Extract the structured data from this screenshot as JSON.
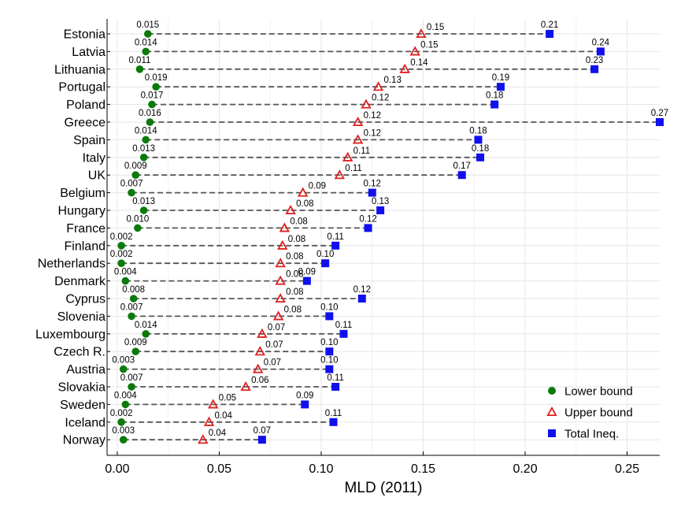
{
  "chart_data": {
    "type": "scatter",
    "xlabel": "MLD (2011)",
    "xlim": [
      -0.005,
      0.266
    ],
    "xticks": [
      0.0,
      0.05,
      0.1,
      0.15,
      0.2,
      0.25
    ],
    "xtick_labels": [
      "0.00",
      "0.05",
      "0.10",
      "0.15",
      "0.20",
      "0.25"
    ],
    "grid": true,
    "legend_position": "bottom-right",
    "categories": [
      "Estonia",
      "Latvia",
      "Lithuania",
      "Portugal",
      "Poland",
      "Greece",
      "Spain",
      "Italy",
      "UK",
      "Belgium",
      "Hungary",
      "France",
      "Finland",
      "Netherlands",
      "Denmark",
      "Cyprus",
      "Slovenia",
      "Luxembourg",
      "Czech R.",
      "Austria",
      "Slovakia",
      "Sweden",
      "Iceland",
      "Norway"
    ],
    "series": [
      {
        "name": "Lower bound",
        "marker": "circle",
        "color": "#0b7a0b",
        "values": [
          0.015,
          0.014,
          0.011,
          0.019,
          0.017,
          0.016,
          0.014,
          0.013,
          0.009,
          0.007,
          0.013,
          0.01,
          0.002,
          0.002,
          0.004,
          0.008,
          0.007,
          0.014,
          0.009,
          0.003,
          0.007,
          0.004,
          0.002,
          0.003
        ],
        "labels": [
          "0.015",
          "0.014",
          "0.011",
          "0.019",
          "0.017",
          "0.016",
          "0.014",
          "0.013",
          "0.009",
          "0.007",
          "0.013",
          "0.010",
          "0.002",
          "0.002",
          "0.004",
          "0.008",
          "0.007",
          "0.014",
          "0.009",
          "0.003",
          "0.007",
          "0.004",
          "0.002",
          "0.003"
        ]
      },
      {
        "name": "Upper bound",
        "marker": "triangle-open",
        "color": "#e02020",
        "values": [
          0.149,
          0.146,
          0.141,
          0.128,
          0.122,
          0.118,
          0.118,
          0.113,
          0.109,
          0.091,
          0.085,
          0.082,
          0.081,
          0.08,
          0.08,
          0.08,
          0.079,
          0.071,
          0.07,
          0.069,
          0.063,
          0.047,
          0.045,
          0.042
        ],
        "labels": [
          "0.15",
          "0.15",
          "0.14",
          "0.13",
          "0.12",
          "0.12",
          "0.12",
          "0.11",
          "0.11",
          "0.09",
          "0.08",
          "0.08",
          "0.08",
          "0.08",
          "0.08",
          "0.08",
          "0.08",
          "0.07",
          "0.07",
          "0.07",
          "0.06",
          "0.05",
          "0.04",
          "0.04"
        ]
      },
      {
        "name": "Total Ineq.",
        "marker": "square",
        "color": "#1010ee",
        "values": [
          0.212,
          0.237,
          0.234,
          0.188,
          0.185,
          0.266,
          0.177,
          0.178,
          0.169,
          0.125,
          0.129,
          0.123,
          0.107,
          0.102,
          0.093,
          0.12,
          0.104,
          0.111,
          0.104,
          0.104,
          0.107,
          0.092,
          0.106,
          0.071
        ],
        "labels": [
          "0.21",
          "0.24",
          "0.23",
          "0.19",
          "0.18",
          "0.27",
          "0.18",
          "0.18",
          "0.17",
          "0.12",
          "0.13",
          "0.12",
          "0.11",
          "0.10",
          "0.09",
          "0.12",
          "0.10",
          "0.11",
          "0.10",
          "0.10",
          "0.11",
          "0.09",
          "0.11",
          "0.07"
        ]
      }
    ]
  }
}
